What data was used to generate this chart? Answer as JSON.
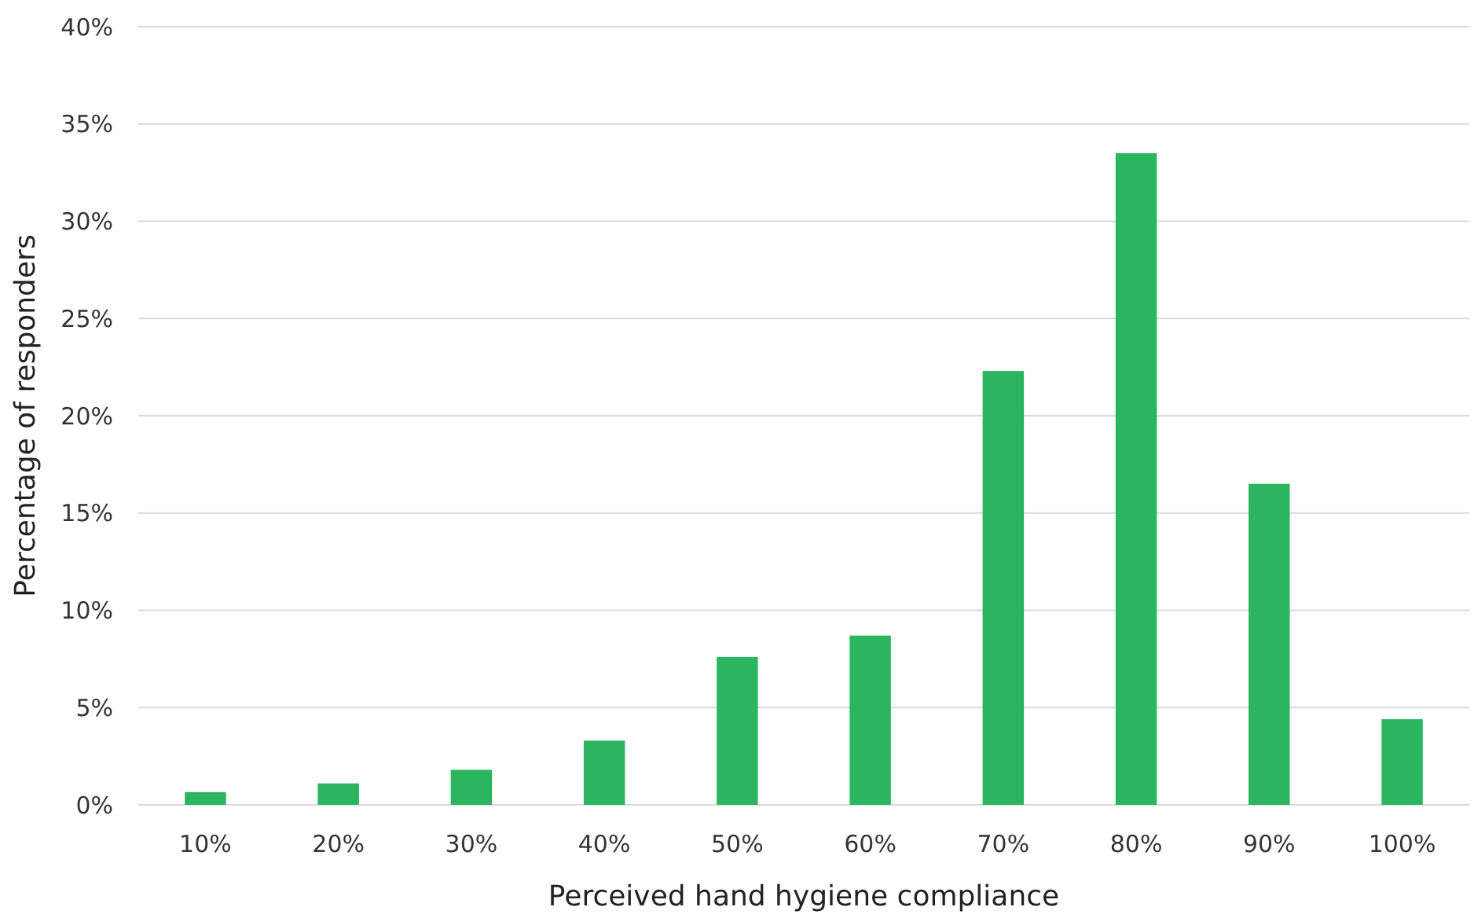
{
  "chart_data": {
    "type": "bar",
    "xlabel": "Perceived hand hygiene compliance",
    "ylabel": "Percentage of responders",
    "categories": [
      "10%",
      "20%",
      "30%",
      "40%",
      "50%",
      "60%",
      "70%",
      "80%",
      "90%",
      "100%"
    ],
    "values": [
      0.65,
      1.1,
      1.8,
      3.3,
      7.6,
      8.7,
      22.3,
      33.5,
      16.5,
      4.4
    ],
    "color": "#2bb55e",
    "ylim": [
      0,
      40
    ],
    "yticks": [
      {
        "value": 0,
        "label": "0%"
      },
      {
        "value": 5,
        "label": "5%"
      },
      {
        "value": 10,
        "label": "10%"
      },
      {
        "value": 15,
        "label": "15%"
      },
      {
        "value": 20,
        "label": "20%"
      },
      {
        "value": 25,
        "label": "25%"
      },
      {
        "value": 30,
        "label": "30%"
      },
      {
        "value": 35,
        "label": "35%"
      },
      {
        "value": 40,
        "label": "40%"
      }
    ],
    "grid": "y"
  }
}
